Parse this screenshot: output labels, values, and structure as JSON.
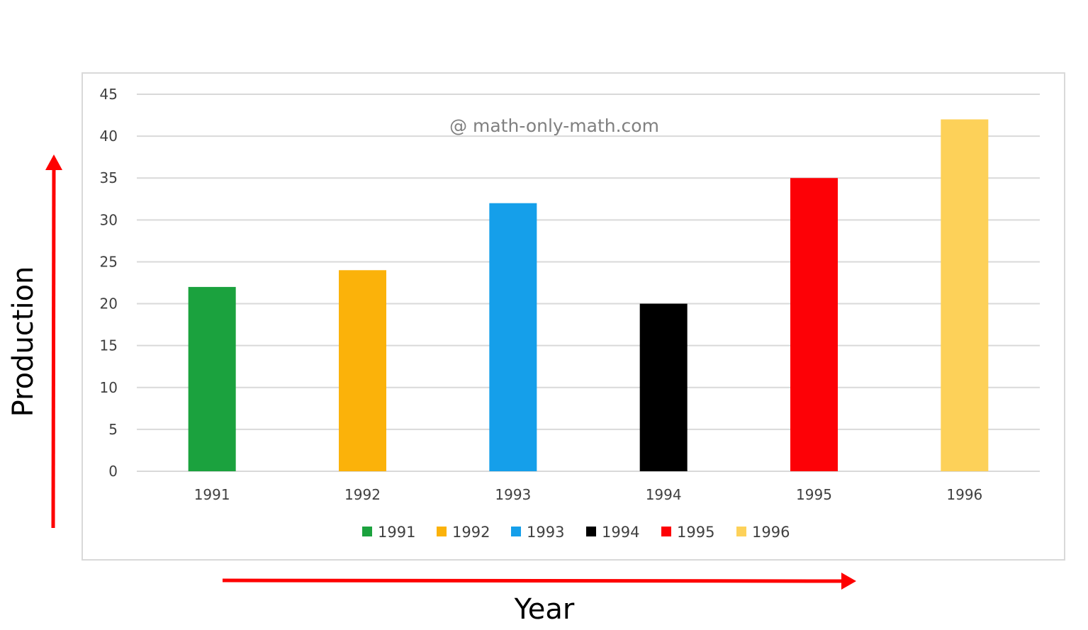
{
  "chart_data": {
    "type": "bar",
    "categories": [
      "1991",
      "1992",
      "1993",
      "1994",
      "1995",
      "1996"
    ],
    "values": [
      22,
      24,
      32,
      20,
      35,
      42
    ],
    "colors": [
      "#1ba23e",
      "#fbb20a",
      "#159fea",
      "#000000",
      "#fd0106",
      "#fdd159"
    ],
    "ylim": [
      0,
      45
    ],
    "yticks": [
      "0",
      "5",
      "10",
      "15",
      "20",
      "25",
      "30",
      "35",
      "40",
      "45"
    ],
    "xlabel": "Year",
    "ylabel": "Production",
    "watermark": "@ math-only-math.com",
    "legend": [
      "1991",
      "1992",
      "1993",
      "1994",
      "1995",
      "1996"
    ],
    "legend_position": "bottom",
    "grid": true,
    "arrow_color": "#fe0000"
  }
}
